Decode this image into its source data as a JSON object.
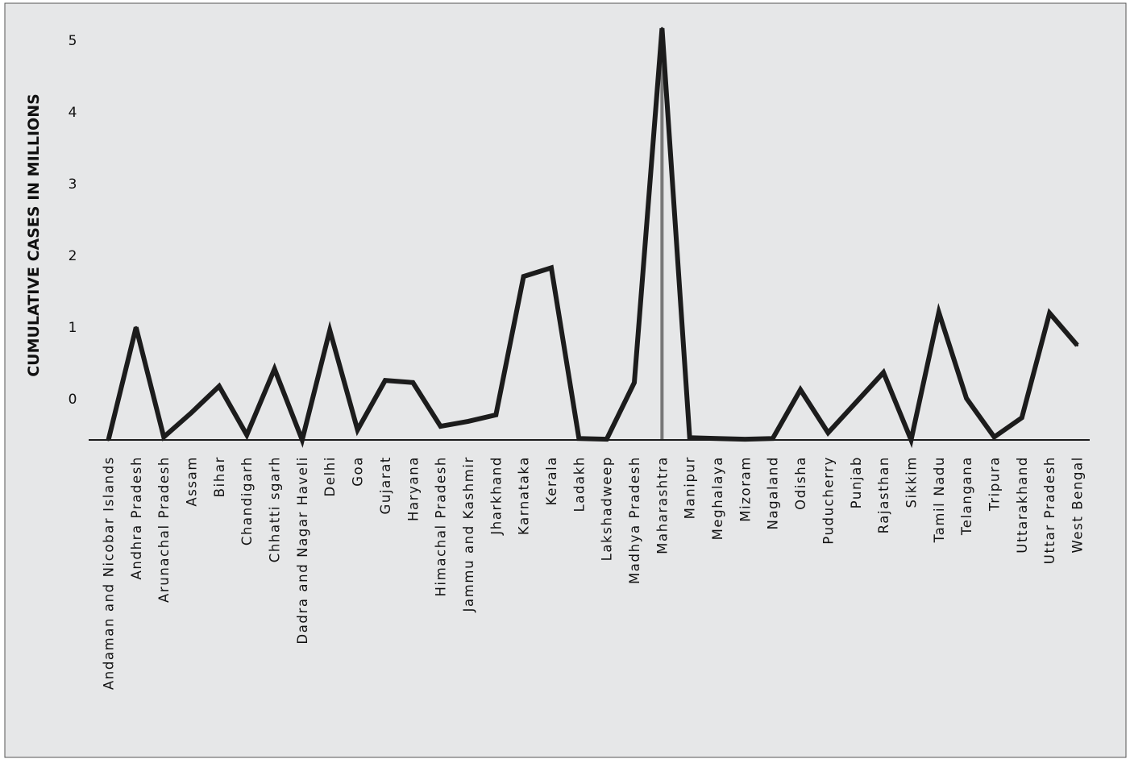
{
  "colors": {
    "background": "#e6e7e8",
    "border": "#555555",
    "line": "#1c1c1c",
    "axis": "#1c1c1c",
    "highlight": "#777777"
  },
  "chart_data": {
    "type": "line",
    "title": "",
    "xlabel": "",
    "ylabel": "CUMULATIVE CASES IN MILLIONS",
    "ytick_labels": [
      "0",
      "1",
      "2",
      "3",
      "4",
      "5"
    ],
    "categories": [
      "Andaman and Nicobar Islands",
      "Andhra Pradesh",
      "Arunachal Pradesh",
      "Assam",
      "Bihar",
      "Chandigarh",
      "Chhatti sgarh",
      "Dadra and Nagar Haveli",
      "Delhi",
      "Goa",
      "Gujarat",
      "Haryana",
      "Himachal Pradesh",
      "Jammu and Kashmir",
      "Jharkhand",
      "Karnataka",
      "Kerala",
      "Ladakh",
      "Lakshadweep",
      "Madhya Pradesh",
      "Maharashtra",
      "Manipur",
      "Meghalaya",
      "Mizoram",
      "Nagaland",
      "Odisha",
      "Puducherry",
      "Punjab",
      "Rajasthan",
      "Sikkim",
      "Tamil Nadu",
      "Telangana",
      "Tripura",
      "Uttarakhand",
      "Uttar Pradesh",
      "West Bengal"
    ],
    "values": [
      0.0,
      1.57,
      0.04,
      0.38,
      0.75,
      0.07,
      0.99,
      0.0,
      1.53,
      0.14,
      0.83,
      0.8,
      0.19,
      0.26,
      0.35,
      2.28,
      2.4,
      0.02,
      0.01,
      0.8,
      5.74,
      0.03,
      0.02,
      0.01,
      0.02,
      0.7,
      0.1,
      0.52,
      0.94,
      0.0,
      1.78,
      0.58,
      0.04,
      0.31,
      1.77,
      1.32
    ],
    "highlight_category": "Maharashtra",
    "grid": false,
    "legend": "none"
  }
}
